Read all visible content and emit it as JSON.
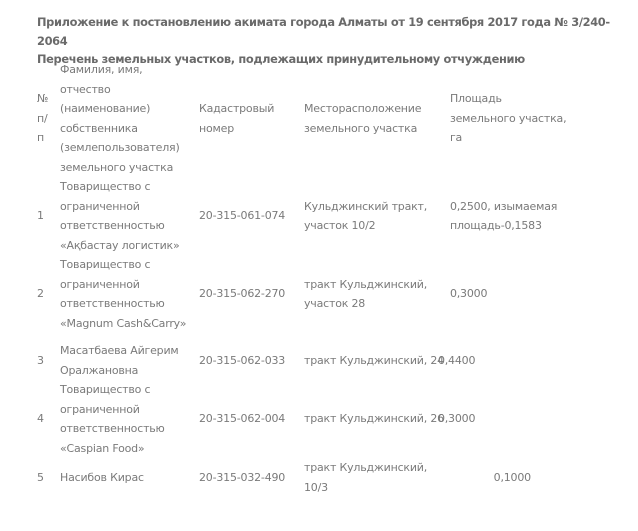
{
  "title_line1": "Приложение к постановлению акимата города Алматы от 19 сентября 2017 года № 3/240-2064",
  "title_line2": "Перечень земельных участков, подлежащих принудительному отчуждению",
  "table": {
    "headers": [
      "№ п/п",
      "Фамилия, имя, отчество (наименование) собственника (землепользователя) земельного участка",
      "Кадастровый номер",
      "Месторасположение земельного участка",
      "Площадь земельного участка, га"
    ],
    "rows": [
      {
        "num": "1",
        "owner": "Товарищество с ограниченной ответственностью «Ақбастау логистик»",
        "cadastral": "20-315-061-074",
        "location": "Кульджинский тракт, участок 10/2",
        "area": "0,2500, изымаемая площадь-0,1583"
      },
      {
        "num": "2",
        "owner": "Товарищество с ограниченной ответственностью «Magnum Cash&Carry»",
        "cadastral": "20-315-062-270",
        "location": "тракт Кульджинский, участок 28",
        "area": "0,3000"
      },
      {
        "num": "3",
        "owner": "Масатбаева Айгерим Оралжановна",
        "cadastral": "20-315-062-033",
        "location": "тракт Кульджинский, 24",
        "area": "0,4400"
      },
      {
        "num": "4",
        "owner": "Товарищество с ограниченной ответственностью «Caspian Food»",
        "cadastral": "20-315-062-004",
        "location": "тракт Кульджинский, 26",
        "area": "0,3000"
      },
      {
        "num": "5",
        "owner": "Насибов Кирас",
        "cadastral": "20-315-032-490",
        "location": "тракт Кульджинский, 10/3",
        "area": "0,1000"
      }
    ]
  }
}
